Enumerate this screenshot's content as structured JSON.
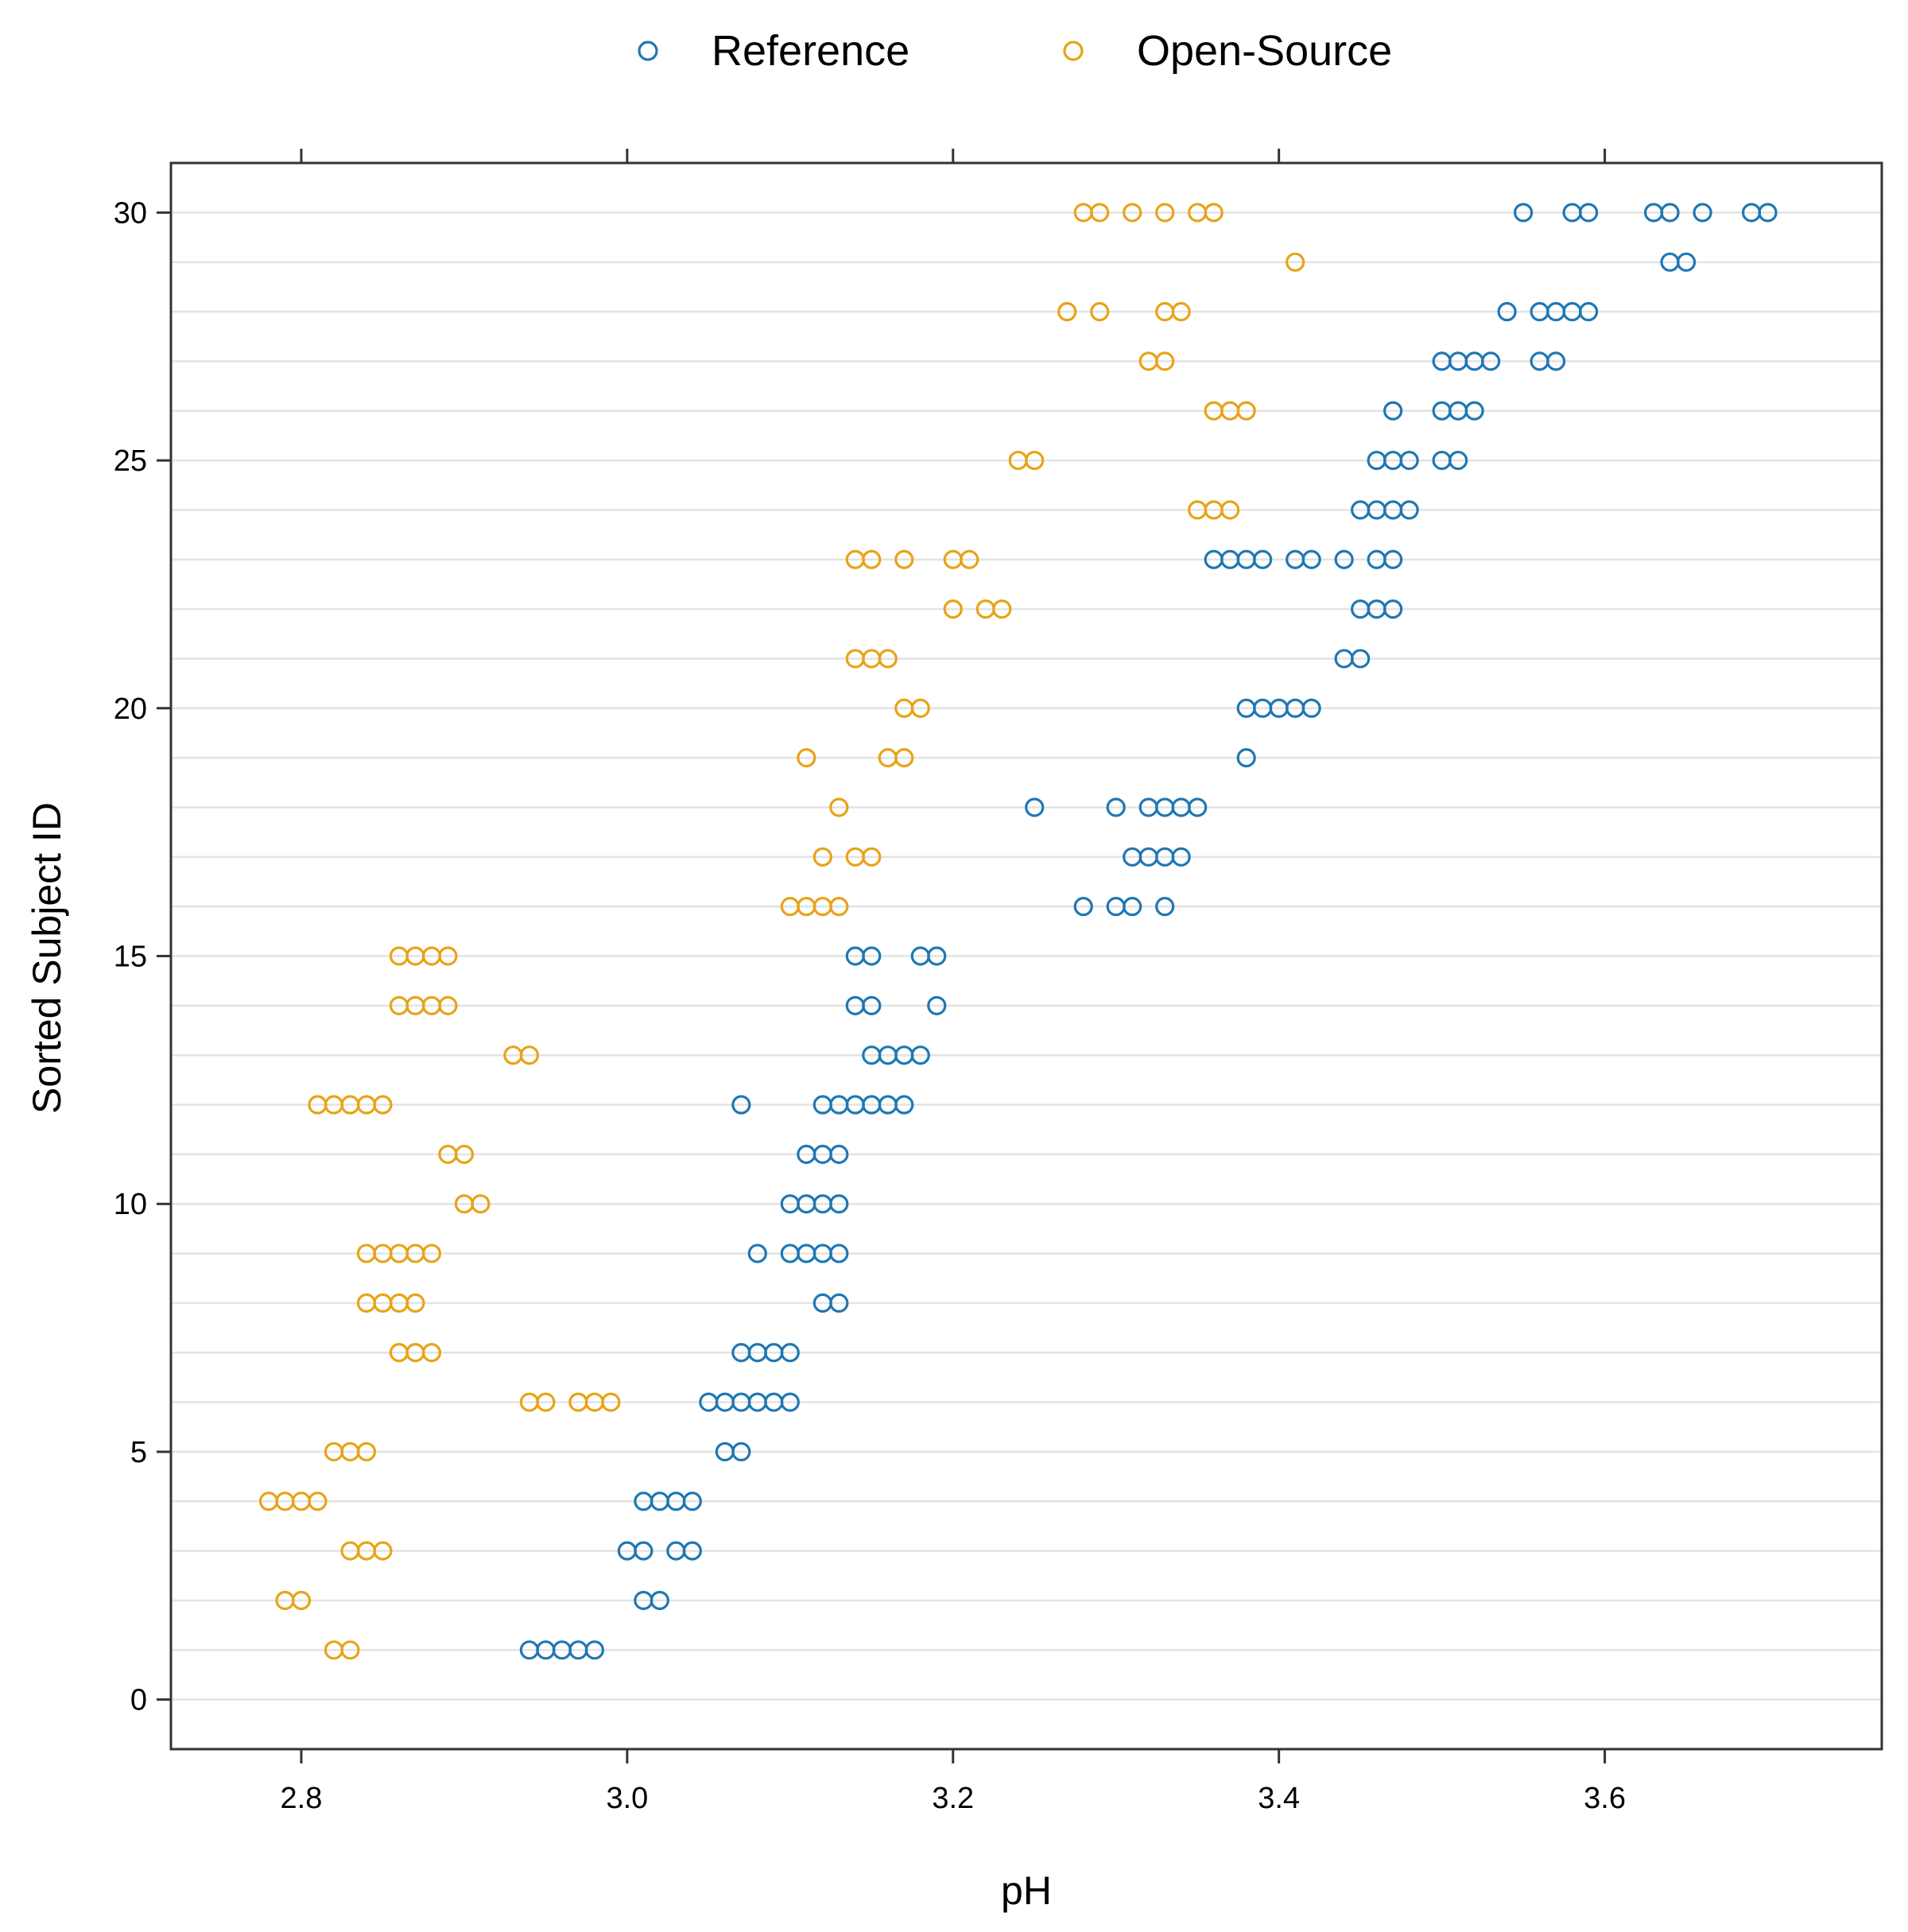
{
  "chart_data": {
    "type": "scatter",
    "xlabel": "pH",
    "ylabel": "Sorted Subject ID",
    "xlim": [
      2.72,
      3.77
    ],
    "ylim": [
      -1,
      31
    ],
    "xticks": [
      2.8,
      3.0,
      3.2,
      3.4,
      3.6
    ],
    "xtick_labels": [
      "2.8",
      "3.0",
      "3.2",
      "3.4",
      "3.6"
    ],
    "yticks": [
      0,
      5,
      10,
      15,
      20,
      25,
      30
    ],
    "ytick_labels": [
      "0",
      "5",
      "10",
      "15",
      "20",
      "25",
      "30"
    ],
    "grid": "horizontal lines at every integer subject id",
    "legend_position": "top",
    "legend": [
      {
        "name": "Reference",
        "color": "#1f77b4"
      },
      {
        "name": "Open-Source",
        "color": "#e8a317"
      }
    ],
    "series": [
      {
        "name": "Reference",
        "color": "#1f77b4",
        "points": [
          {
            "y": 1,
            "x": [
              2.94,
              2.95,
              2.96,
              2.97,
              2.98
            ]
          },
          {
            "y": 2,
            "x": [
              3.01,
              3.02
            ]
          },
          {
            "y": 3,
            "x": [
              3.0,
              3.01,
              3.03,
              3.04
            ]
          },
          {
            "y": 4,
            "x": [
              3.01,
              3.02,
              3.03,
              3.04
            ]
          },
          {
            "y": 5,
            "x": [
              3.06,
              3.07
            ]
          },
          {
            "y": 6,
            "x": [
              3.05,
              3.06,
              3.07,
              3.08,
              3.09,
              3.1
            ]
          },
          {
            "y": 7,
            "x": [
              3.07,
              3.08,
              3.09,
              3.1
            ]
          },
          {
            "y": 8,
            "x": [
              3.12,
              3.13
            ]
          },
          {
            "y": 9,
            "x": [
              3.08,
              3.1,
              3.11,
              3.12,
              3.13
            ]
          },
          {
            "y": 10,
            "x": [
              3.1,
              3.11,
              3.12,
              3.13
            ]
          },
          {
            "y": 11,
            "x": [
              3.11,
              3.12,
              3.13
            ]
          },
          {
            "y": 12,
            "x": [
              3.07,
              3.12,
              3.13,
              3.14,
              3.15,
              3.16,
              3.17
            ]
          },
          {
            "y": 13,
            "x": [
              3.15,
              3.16,
              3.17,
              3.18
            ]
          },
          {
            "y": 14,
            "x": [
              3.14,
              3.15,
              3.19
            ]
          },
          {
            "y": 15,
            "x": [
              3.14,
              3.15,
              3.18,
              3.19
            ]
          },
          {
            "y": 16,
            "x": [
              3.28,
              3.3,
              3.31,
              3.33
            ]
          },
          {
            "y": 17,
            "x": [
              3.31,
              3.32,
              3.33,
              3.34
            ]
          },
          {
            "y": 18,
            "x": [
              3.25,
              3.3,
              3.32,
              3.33,
              3.34,
              3.35
            ]
          },
          {
            "y": 19,
            "x": [
              3.38
            ]
          },
          {
            "y": 20,
            "x": [
              3.38,
              3.39,
              3.4,
              3.41,
              3.42
            ]
          },
          {
            "y": 21,
            "x": [
              3.44,
              3.45
            ]
          },
          {
            "y": 22,
            "x": [
              3.45,
              3.46,
              3.47
            ]
          },
          {
            "y": 23,
            "x": [
              3.36,
              3.37,
              3.38,
              3.39,
              3.41,
              3.42,
              3.44,
              3.46,
              3.47
            ]
          },
          {
            "y": 24,
            "x": [
              3.45,
              3.46,
              3.47,
              3.48
            ]
          },
          {
            "y": 25,
            "x": [
              3.46,
              3.47,
              3.48,
              3.5,
              3.51
            ]
          },
          {
            "y": 26,
            "x": [
              3.47,
              3.5,
              3.51,
              3.52
            ]
          },
          {
            "y": 27,
            "x": [
              3.5,
              3.51,
              3.52,
              3.53,
              3.56,
              3.57
            ]
          },
          {
            "y": 28,
            "x": [
              3.54,
              3.56,
              3.57,
              3.58,
              3.59
            ]
          },
          {
            "y": 29,
            "x": [
              3.64,
              3.65
            ]
          },
          {
            "y": 30,
            "x": [
              3.55,
              3.58,
              3.59,
              3.63,
              3.64,
              3.66,
              3.69,
              3.7
            ]
          }
        ]
      },
      {
        "name": "Open-Source",
        "color": "#e8a317",
        "points": [
          {
            "y": 1,
            "x": [
              2.82,
              2.83
            ]
          },
          {
            "y": 2,
            "x": [
              2.79,
              2.8
            ]
          },
          {
            "y": 3,
            "x": [
              2.83,
              2.84,
              2.85
            ]
          },
          {
            "y": 4,
            "x": [
              2.78,
              2.79,
              2.8,
              2.81
            ]
          },
          {
            "y": 5,
            "x": [
              2.82,
              2.83,
              2.84
            ]
          },
          {
            "y": 6,
            "x": [
              2.94,
              2.95,
              2.97,
              2.98,
              2.99
            ]
          },
          {
            "y": 7,
            "x": [
              2.86,
              2.87,
              2.88
            ]
          },
          {
            "y": 8,
            "x": [
              2.84,
              2.85,
              2.86,
              2.87
            ]
          },
          {
            "y": 9,
            "x": [
              2.84,
              2.85,
              2.86,
              2.87,
              2.88
            ]
          },
          {
            "y": 10,
            "x": [
              2.9,
              2.91
            ]
          },
          {
            "y": 11,
            "x": [
              2.89,
              2.9
            ]
          },
          {
            "y": 12,
            "x": [
              2.81,
              2.82,
              2.83,
              2.84,
              2.85
            ]
          },
          {
            "y": 13,
            "x": [
              2.93,
              2.94
            ]
          },
          {
            "y": 14,
            "x": [
              2.86,
              2.87,
              2.88,
              2.89
            ]
          },
          {
            "y": 15,
            "x": [
              2.86,
              2.87,
              2.88,
              2.89
            ]
          },
          {
            "y": 16,
            "x": [
              3.1,
              3.11,
              3.12,
              3.13
            ]
          },
          {
            "y": 17,
            "x": [
              3.12,
              3.14,
              3.15
            ]
          },
          {
            "y": 18,
            "x": [
              3.13
            ]
          },
          {
            "y": 19,
            "x": [
              3.11,
              3.16,
              3.17
            ]
          },
          {
            "y": 20,
            "x": [
              3.17,
              3.18
            ]
          },
          {
            "y": 21,
            "x": [
              3.14,
              3.15,
              3.16
            ]
          },
          {
            "y": 22,
            "x": [
              3.2,
              3.22,
              3.23
            ]
          },
          {
            "y": 23,
            "x": [
              3.14,
              3.15,
              3.17,
              3.2,
              3.21
            ]
          },
          {
            "y": 24,
            "x": [
              3.35,
              3.36,
              3.37
            ]
          },
          {
            "y": 25,
            "x": [
              3.24,
              3.25
            ]
          },
          {
            "y": 26,
            "x": [
              3.36,
              3.37,
              3.38
            ]
          },
          {
            "y": 27,
            "x": [
              3.32,
              3.33
            ]
          },
          {
            "y": 28,
            "x": [
              3.27,
              3.29,
              3.33,
              3.34
            ]
          },
          {
            "y": 29,
            "x": [
              3.41
            ]
          },
          {
            "y": 30,
            "x": [
              3.28,
              3.29,
              3.31,
              3.33,
              3.35,
              3.36
            ]
          }
        ]
      }
    ]
  }
}
